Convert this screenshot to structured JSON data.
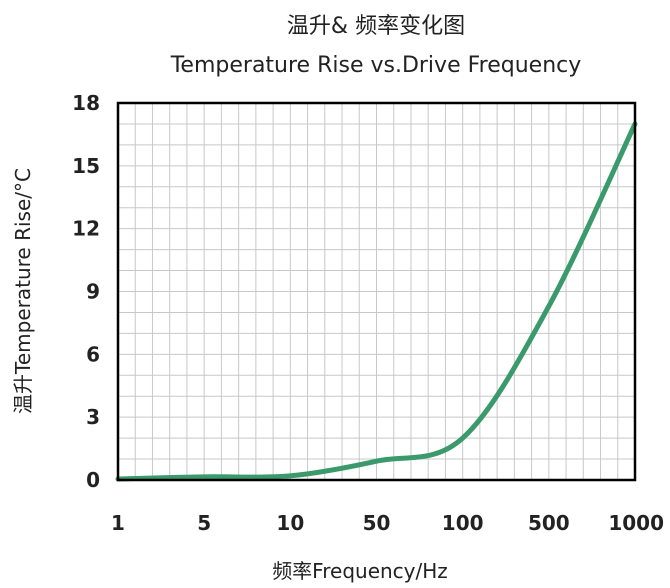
{
  "chart_data": {
    "type": "line",
    "title": "温升& 频率变化图",
    "subtitle": "Temperature Rise vs.Drive Frequency",
    "xlabel": "频率Frequency/Hz",
    "ylabel": "温升Temperature Rise/°C",
    "x_scale": "categorical",
    "x_ticks": [
      "1",
      "5",
      "10",
      "50",
      "100",
      "500",
      "1000"
    ],
    "y_ticks": [
      "0",
      "3",
      "6",
      "9",
      "12",
      "15",
      "18"
    ],
    "ylim": [
      0,
      18
    ],
    "grid": true,
    "series": [
      {
        "color": "#3a9a6c",
        "x": [
          "1",
          "5",
          "10",
          "50",
          "100",
          "500",
          "1000"
        ],
        "y": [
          0.05,
          0.15,
          0.2,
          0.9,
          2.0,
          8.3,
          17.0
        ]
      }
    ]
  }
}
